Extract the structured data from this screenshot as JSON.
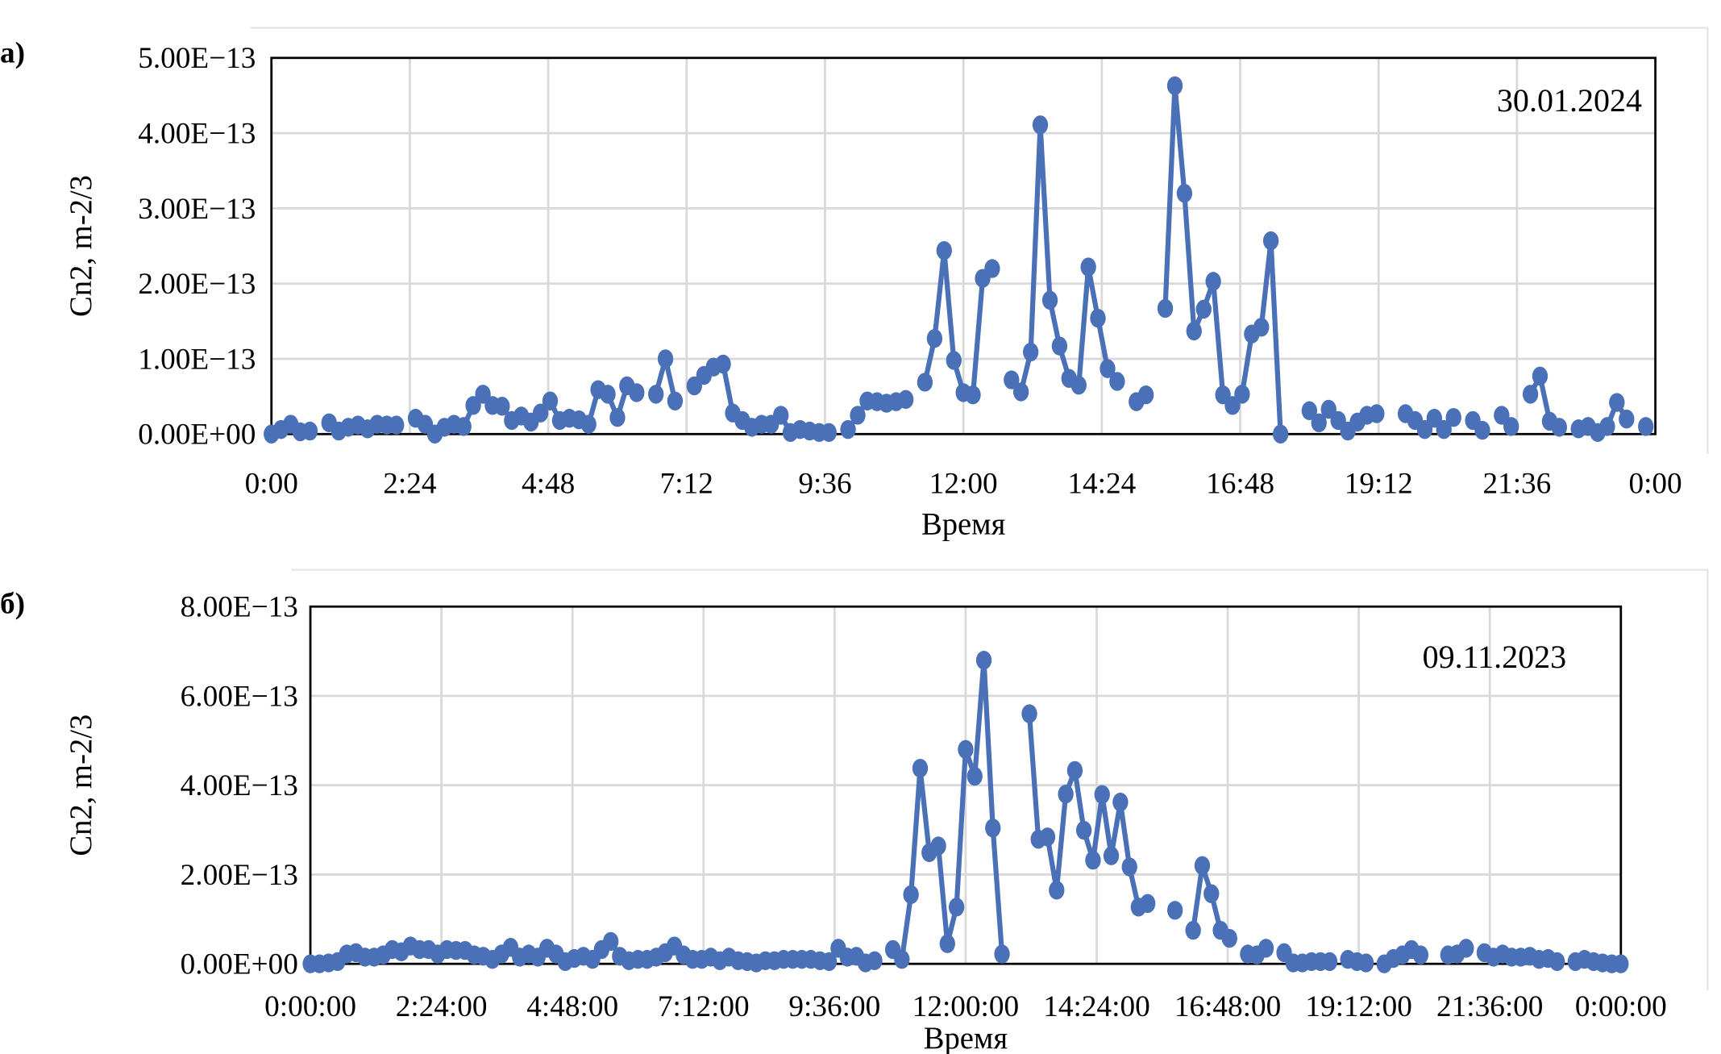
{
  "colors": {
    "series": "#4a70b7",
    "grid": "#d9d9d9",
    "frame": "#000000"
  },
  "chart_data": [
    {
      "type": "line",
      "panel_label": "а)",
      "annotation": "30.01.2024",
      "xlabel": "Время",
      "ylabel": "Cn2, m-2/3",
      "xlim": [
        "0:00",
        "24:00"
      ],
      "ylim": [
        0,
        5e-13
      ],
      "grid": true,
      "markers": "circle",
      "x_ticks": [
        "0:00",
        "2:24",
        "4:48",
        "7:12",
        "9:36",
        "12:00",
        "14:24",
        "16:48",
        "19:12",
        "21:36",
        "0:00"
      ],
      "y_ticks": [
        "0.00E+00",
        "1.00E−13",
        "2.00E−13",
        "3.00E−13",
        "4.00E−13",
        "5.00E−13"
      ],
      "y_tick_values": [
        0,
        1e-13,
        2e-13,
        3e-13,
        4e-13,
        5e-13
      ],
      "points": [
        [
          "0:00",
          0.0
        ],
        [
          "0:10",
          6e-15
        ],
        [
          "0:20",
          1.3e-14
        ],
        [
          "0:30",
          3e-15
        ],
        [
          "0:40",
          4e-15
        ],
        [
          "1:00",
          1.5e-14
        ],
        [
          "1:10",
          4e-15
        ],
        [
          "1:20",
          9e-15
        ],
        [
          "1:30",
          1.2e-14
        ],
        [
          "1:40",
          7e-15
        ],
        [
          "1:50",
          1.3e-14
        ],
        [
          "2:00",
          1.2e-14
        ],
        [
          "2:10",
          1.2e-14
        ],
        [
          "2:30",
          2.1e-14
        ],
        [
          "2:40",
          1.3e-14
        ],
        [
          "2:50",
          0.0
        ],
        [
          "3:00",
          9e-15
        ],
        [
          "3:10",
          1.3e-14
        ],
        [
          "3:20",
          1e-14
        ],
        [
          "3:30",
          3.8e-14
        ],
        [
          "3:40",
          5.3e-14
        ],
        [
          "3:50",
          3.8e-14
        ],
        [
          "4:00",
          3.7e-14
        ],
        [
          "4:10",
          1.8e-14
        ],
        [
          "4:20",
          2.4e-14
        ],
        [
          "4:30",
          1.6e-14
        ],
        [
          "4:40",
          2.8e-14
        ],
        [
          "4:50",
          4.4e-14
        ],
        [
          "5:00",
          1.8e-14
        ],
        [
          "5:10",
          2.1e-14
        ],
        [
          "5:20",
          1.9e-14
        ],
        [
          "5:30",
          1.3e-14
        ],
        [
          "5:40",
          5.9e-14
        ],
        [
          "5:50",
          5.3e-14
        ],
        [
          "6:00",
          2.2e-14
        ],
        [
          "6:10",
          6.4e-14
        ],
        [
          "6:20",
          5.5e-14
        ],
        [
          "6:40",
          5.3e-14
        ],
        [
          "6:50",
          1e-13
        ],
        [
          "7:00",
          4.4e-14
        ],
        [
          "7:20",
          6.4e-14
        ],
        [
          "7:30",
          7.8e-14
        ],
        [
          "7:40",
          8.9e-14
        ],
        [
          "7:50",
          9.3e-14
        ],
        [
          "8:00",
          2.8e-14
        ],
        [
          "8:10",
          1.8e-14
        ],
        [
          "8:20",
          9e-15
        ],
        [
          "8:30",
          1.3e-14
        ],
        [
          "8:40",
          1.3e-14
        ],
        [
          "8:50",
          2.5e-14
        ],
        [
          "9:00",
          2e-15
        ],
        [
          "9:10",
          6e-15
        ],
        [
          "9:20",
          4e-15
        ],
        [
          "9:30",
          2e-15
        ],
        [
          "9:40",
          2e-15
        ],
        [
          "10:00",
          6e-15
        ],
        [
          "10:10",
          2.5e-14
        ],
        [
          "10:20",
          4.4e-14
        ],
        [
          "10:30",
          4.3e-14
        ],
        [
          "10:40",
          4.1e-14
        ],
        [
          "10:50",
          4.3e-14
        ],
        [
          "11:00",
          4.6e-14
        ],
        [
          "11:20",
          6.9e-14
        ],
        [
          "11:30",
          1.27e-13
        ],
        [
          "11:40",
          2.44e-13
        ],
        [
          "11:50",
          9.8e-14
        ],
        [
          "12:00",
          5.5e-14
        ],
        [
          "12:10",
          5.2e-14
        ],
        [
          "12:20",
          2.07e-13
        ],
        [
          "12:30",
          2.2e-13
        ],
        [
          "12:50",
          7.2e-14
        ],
        [
          "13:00",
          5.6e-14
        ],
        [
          "13:10",
          1.09e-13
        ],
        [
          "13:20",
          4.11e-13
        ],
        [
          "13:30",
          1.78e-13
        ],
        [
          "13:40",
          1.17e-13
        ],
        [
          "13:50",
          7.4e-14
        ],
        [
          "14:00",
          6.5e-14
        ],
        [
          "14:10",
          2.22e-13
        ],
        [
          "14:20",
          1.54e-13
        ],
        [
          "14:30",
          8.7e-14
        ],
        [
          "14:40",
          7e-14
        ],
        [
          "15:00",
          4.3e-14
        ],
        [
          "15:10",
          5.2e-14
        ],
        [
          "15:30",
          1.67e-13
        ],
        [
          "15:40",
          4.63e-13
        ],
        [
          "15:50",
          3.2e-13
        ],
        [
          "16:00",
          1.37e-13
        ],
        [
          "16:10",
          1.66e-13
        ],
        [
          "16:20",
          2.03e-13
        ],
        [
          "16:30",
          5.2e-14
        ],
        [
          "16:40",
          3.8e-14
        ],
        [
          "16:50",
          5.3e-14
        ],
        [
          "17:00",
          1.33e-13
        ],
        [
          "17:10",
          1.42e-13
        ],
        [
          "17:20",
          2.57e-13
        ],
        [
          "17:30",
          0.0
        ],
        [
          "18:00",
          3.1e-14
        ],
        [
          "18:10",
          1.5e-14
        ],
        [
          "18:20",
          3.3e-14
        ],
        [
          "18:30",
          1.8e-14
        ],
        [
          "18:40",
          4e-15
        ],
        [
          "18:50",
          1.6e-14
        ],
        [
          "19:00",
          2.5e-14
        ],
        [
          "19:10",
          2.7e-14
        ],
        [
          "19:40",
          2.7e-14
        ],
        [
          "19:50",
          1.8e-14
        ],
        [
          "20:00",
          6e-15
        ],
        [
          "20:10",
          2.1e-14
        ],
        [
          "20:20",
          6e-15
        ],
        [
          "20:30",
          2.2e-14
        ],
        [
          "20:50",
          1.8e-14
        ],
        [
          "21:00",
          5e-15
        ],
        [
          "21:20",
          2.5e-14
        ],
        [
          "21:30",
          1e-14
        ],
        [
          "21:50",
          5.3e-14
        ],
        [
          "22:00",
          7.7e-14
        ],
        [
          "22:10",
          1.7e-14
        ],
        [
          "22:20",
          9e-15
        ],
        [
          "22:40",
          7e-15
        ],
        [
          "22:50",
          1e-14
        ],
        [
          "23:00",
          2e-15
        ],
        [
          "23:10",
          1e-14
        ],
        [
          "23:20",
          4.2e-14
        ],
        [
          "23:30",
          2e-14
        ],
        [
          "23:50",
          1e-14
        ]
      ]
    },
    {
      "type": "line",
      "panel_label": "б)",
      "annotation": "09.11.2023",
      "xlabel": "Время",
      "ylabel": "Cn2, m-2/3",
      "xlim": [
        "0:00:00",
        "24:00:00"
      ],
      "ylim": [
        0,
        8e-13
      ],
      "grid": true,
      "markers": "circle",
      "x_ticks": [
        "0:00:00",
        "2:24:00",
        "4:48:00",
        "7:12:00",
        "9:36:00",
        "12:00:00",
        "14:24:00",
        "16:48:00",
        "19:12:00",
        "21:36:00",
        "0:00:00"
      ],
      "y_ticks": [
        "0.00E+00",
        "2.00E−13",
        "4.00E−13",
        "6.00E−13",
        "8.00E−13"
      ],
      "y_tick_values": [
        0,
        2e-13,
        4e-13,
        6e-13,
        8e-13
      ],
      "points": [
        [
          "0:00",
          0.0
        ],
        [
          "0:10",
          0.0
        ],
        [
          "0:20",
          2e-15
        ],
        [
          "0:30",
          5e-15
        ],
        [
          "0:40",
          2.2e-14
        ],
        [
          "0:50",
          2.5e-14
        ],
        [
          "1:00",
          1.5e-14
        ],
        [
          "1:10",
          1.5e-14
        ],
        [
          "1:20",
          2e-14
        ],
        [
          "1:30",
          3.2e-14
        ],
        [
          "1:40",
          2.7e-14
        ],
        [
          "1:50",
          4e-14
        ],
        [
          "2:00",
          3.2e-14
        ],
        [
          "2:10",
          3.2e-14
        ],
        [
          "2:20",
          2.2e-14
        ],
        [
          "2:30",
          3.2e-14
        ],
        [
          "2:40",
          3e-14
        ],
        [
          "2:50",
          3e-14
        ],
        [
          "3:00",
          2e-14
        ],
        [
          "3:10",
          1.7e-14
        ],
        [
          "3:20",
          1e-14
        ],
        [
          "3:30",
          2.2e-14
        ],
        [
          "3:40",
          3.7e-14
        ],
        [
          "3:50",
          1.5e-14
        ],
        [
          "4:00",
          2.2e-14
        ],
        [
          "4:10",
          1.5e-14
        ],
        [
          "4:20",
          3.5e-14
        ],
        [
          "4:30",
          2.2e-14
        ],
        [
          "4:40",
          5e-15
        ],
        [
          "4:50",
          1.2e-14
        ],
        [
          "5:00",
          1.7e-14
        ],
        [
          "5:10",
          1e-14
        ],
        [
          "5:20",
          3.2e-14
        ],
        [
          "5:30",
          5e-14
        ],
        [
          "5:40",
          1.7e-14
        ],
        [
          "5:50",
          7e-15
        ],
        [
          "6:00",
          1e-14
        ],
        [
          "6:10",
          1e-14
        ],
        [
          "6:20",
          1.5e-14
        ],
        [
          "6:30",
          2.5e-14
        ],
        [
          "6:40",
          4e-14
        ],
        [
          "6:50",
          2e-14
        ],
        [
          "7:00",
          1e-14
        ],
        [
          "7:10",
          1e-14
        ],
        [
          "7:20",
          1.5e-14
        ],
        [
          "7:30",
          7e-15
        ],
        [
          "7:40",
          1.5e-14
        ],
        [
          "7:50",
          7e-15
        ],
        [
          "8:00",
          5e-15
        ],
        [
          "8:10",
          2e-15
        ],
        [
          "8:20",
          7e-15
        ],
        [
          "8:30",
          7e-15
        ],
        [
          "8:40",
          1e-14
        ],
        [
          "8:50",
          1e-14
        ],
        [
          "9:00",
          1e-14
        ],
        [
          "9:10",
          1e-14
        ],
        [
          "9:20",
          7e-15
        ],
        [
          "9:30",
          5e-15
        ],
        [
          "9:40",
          3.5e-14
        ],
        [
          "9:50",
          1.5e-14
        ],
        [
          "10:00",
          1.7e-14
        ],
        [
          "10:10",
          2e-15
        ],
        [
          "10:20",
          7e-15
        ],
        [
          "10:40",
          3.2e-14
        ],
        [
          "10:50",
          1e-14
        ],
        [
          "11:00",
          1.55e-13
        ],
        [
          "11:10",
          4.38e-13
        ],
        [
          "11:20",
          2.49e-13
        ],
        [
          "11:30",
          2.64e-13
        ],
        [
          "11:40",
          4.5e-14
        ],
        [
          "11:50",
          1.27e-13
        ],
        [
          "12:00",
          4.8e-13
        ],
        [
          "12:10",
          4.2e-13
        ],
        [
          "12:20",
          6.8e-13
        ],
        [
          "12:30",
          3.04e-13
        ],
        [
          "12:40",
          2.2e-14
        ],
        [
          "13:10",
          5.6e-13
        ],
        [
          "13:20",
          2.79e-13
        ],
        [
          "13:30",
          2.84e-13
        ],
        [
          "13:40",
          1.65e-13
        ],
        [
          "13:50",
          3.8e-13
        ],
        [
          "14:00",
          4.33e-13
        ],
        [
          "14:10",
          2.99e-13
        ],
        [
          "14:20",
          2.32e-13
        ],
        [
          "14:30",
          3.79e-13
        ],
        [
          "14:40",
          2.42e-13
        ],
        [
          "14:50",
          3.62e-13
        ],
        [
          "15:00",
          2.17e-13
        ],
        [
          "15:10",
          1.27e-13
        ],
        [
          "15:20",
          1.35e-13
        ],
        [
          "15:50",
          1.2e-13
        ],
        [
          "16:10",
          7.5e-14
        ],
        [
          "16:20",
          2.2e-13
        ],
        [
          "16:30",
          1.57e-13
        ],
        [
          "16:40",
          7.5e-14
        ],
        [
          "16:50",
          5.7e-14
        ],
        [
          "17:10",
          2.2e-14
        ],
        [
          "17:20",
          2e-14
        ],
        [
          "17:30",
          3.5e-14
        ],
        [
          "17:50",
          2.5e-14
        ],
        [
          "18:00",
          2e-15
        ],
        [
          "18:10",
          2e-15
        ],
        [
          "18:20",
          5e-15
        ],
        [
          "18:30",
          5e-15
        ],
        [
          "18:40",
          5e-15
        ],
        [
          "19:00",
          1e-14
        ],
        [
          "19:10",
          5e-15
        ],
        [
          "19:20",
          2e-15
        ],
        [
          "19:40",
          0.0
        ],
        [
          "19:50",
          1.2e-14
        ],
        [
          "20:00",
          2e-14
        ],
        [
          "20:10",
          3.2e-14
        ],
        [
          "20:20",
          2e-14
        ],
        [
          "20:50",
          2e-14
        ],
        [
          "21:00",
          2.2e-14
        ],
        [
          "21:10",
          3.5e-14
        ],
        [
          "21:30",
          2.5e-14
        ],
        [
          "21:40",
          1.5e-14
        ],
        [
          "21:50",
          2.2e-14
        ],
        [
          "22:00",
          1.5e-14
        ],
        [
          "22:10",
          1.5e-14
        ],
        [
          "22:20",
          1.7e-14
        ],
        [
          "22:30",
          1e-14
        ],
        [
          "22:40",
          1.2e-14
        ],
        [
          "22:50",
          5e-15
        ],
        [
          "23:10",
          5e-15
        ],
        [
          "23:20",
          1e-14
        ],
        [
          "23:30",
          5e-15
        ],
        [
          "23:40",
          2e-15
        ],
        [
          "23:50",
          0.0
        ],
        [
          "24:00",
          0.0
        ]
      ]
    }
  ]
}
